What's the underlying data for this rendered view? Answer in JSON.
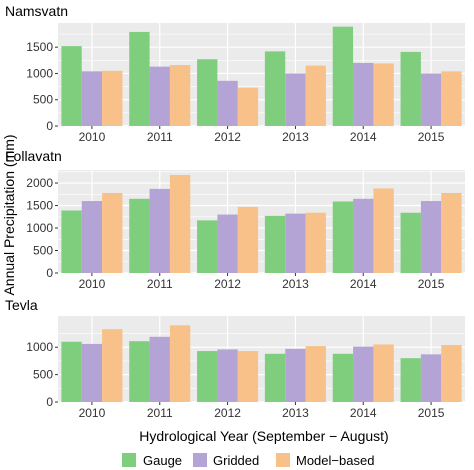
{
  "chart_data": [
    {
      "type": "bar",
      "title": "Namsvatn",
      "categories": [
        "2010",
        "2011",
        "2012",
        "2013",
        "2014",
        "2015"
      ],
      "series": [
        {
          "name": "Gauge",
          "values": [
            1520,
            1790,
            1270,
            1420,
            1890,
            1410
          ]
        },
        {
          "name": "Gridded",
          "values": [
            1040,
            1130,
            860,
            1000,
            1200,
            1000
          ]
        },
        {
          "name": "Model−based",
          "values": [
            1050,
            1160,
            730,
            1150,
            1190,
            1040
          ]
        }
      ],
      "ylim": [
        0,
        1960
      ],
      "yticks": [
        0,
        500,
        1000,
        1500
      ]
    },
    {
      "type": "bar",
      "title": "Follavatn",
      "categories": [
        "2010",
        "2011",
        "2012",
        "2013",
        "2014",
        "2015"
      ],
      "series": [
        {
          "name": "Gauge",
          "values": [
            1390,
            1650,
            1170,
            1270,
            1590,
            1340
          ]
        },
        {
          "name": "Gridded",
          "values": [
            1600,
            1870,
            1300,
            1320,
            1650,
            1600
          ]
        },
        {
          "name": "Model−based",
          "values": [
            1780,
            2180,
            1470,
            1340,
            1880,
            1780
          ]
        }
      ],
      "ylim": [
        0,
        2290
      ],
      "yticks": [
        0,
        500,
        1000,
        1500,
        2000
      ]
    },
    {
      "type": "bar",
      "title": "Tevla",
      "categories": [
        "2010",
        "2011",
        "2012",
        "2013",
        "2014",
        "2015"
      ],
      "series": [
        {
          "name": "Gauge",
          "values": [
            1100,
            1110,
            930,
            880,
            880,
            800
          ]
        },
        {
          "name": "Gridded",
          "values": [
            1060,
            1190,
            960,
            970,
            1010,
            870
          ]
        },
        {
          "name": "Model−based",
          "values": [
            1330,
            1400,
            930,
            1020,
            1050,
            1040
          ]
        }
      ],
      "ylim": [
        0,
        1570
      ],
      "yticks": [
        0,
        500,
        1000
      ]
    }
  ],
  "ylabel": "Annual Precipitation (mm)",
  "xlabel": "Hydrological Year (September − August)",
  "legend": {
    "placement": "bottom",
    "items": [
      {
        "label": "Gauge",
        "color": "#7fce7d"
      },
      {
        "label": "Gridded",
        "color": "#b4a4d6"
      },
      {
        "label": "Model−based",
        "color": "#f9c18a"
      }
    ]
  },
  "colors": {
    "panel": "#ebebeb",
    "grid": "#ffffff",
    "axis_text": "#333333"
  }
}
